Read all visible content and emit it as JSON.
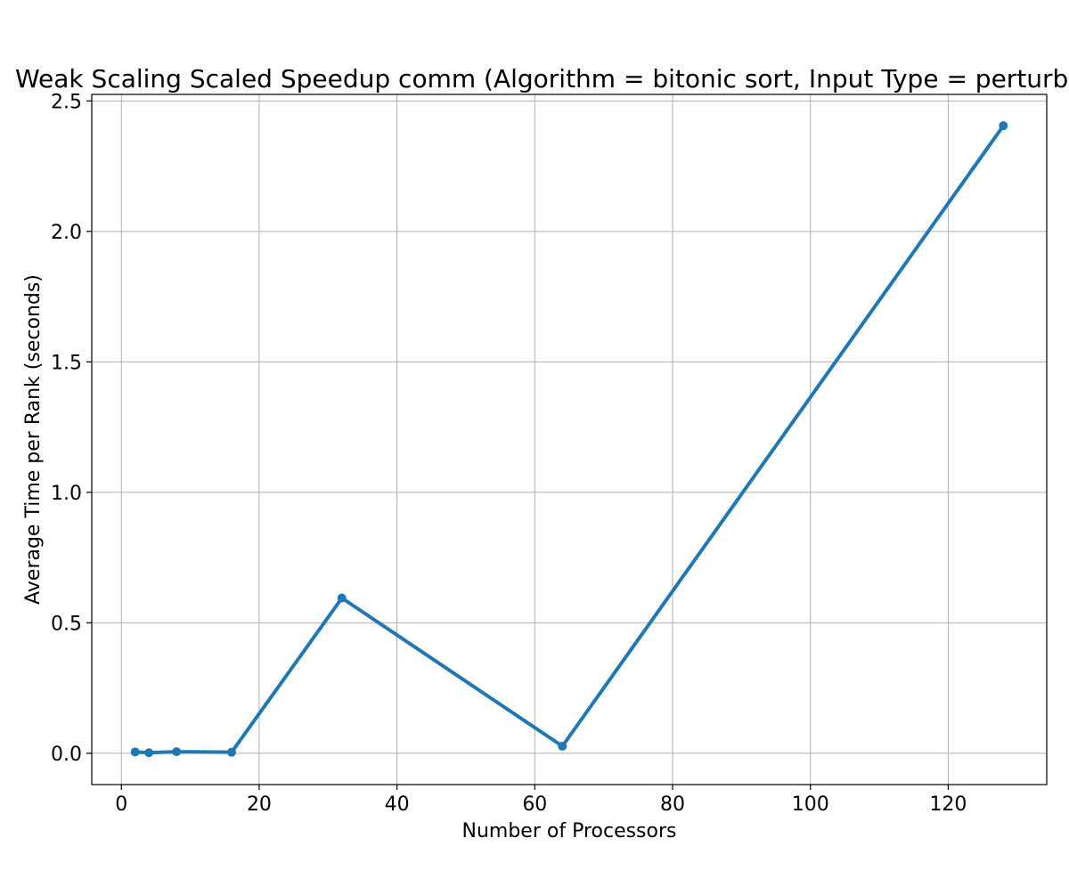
{
  "chart_data": {
    "type": "line",
    "title": "Weak Scaling Scaled Speedup comm (Algorithm = bitonic sort, Input Type = perturbed)",
    "xlabel": "Number of Processors",
    "ylabel": "Average Time per Rank (seconds)",
    "x": [
      2,
      4,
      8,
      16,
      32,
      64,
      128
    ],
    "series": [
      {
        "values": [
          0.005,
          0.002,
          0.006,
          0.004,
          0.595,
          0.027,
          2.405
        ]
      }
    ],
    "xlim": [
      -4.3,
      134.3
    ],
    "ylim": [
      -0.12,
      2.525
    ],
    "xticks": [
      0,
      20,
      40,
      60,
      80,
      100,
      120
    ],
    "xtick_labels": [
      "0",
      "20",
      "40",
      "60",
      "80",
      "100",
      "120"
    ],
    "yticks": [
      0.0,
      0.5,
      1.0,
      1.5,
      2.0,
      2.5
    ],
    "ytick_labels": [
      "0.0",
      "0.5",
      "1.0",
      "1.5",
      "2.0",
      "2.5"
    ],
    "grid": true,
    "line_color": "#1f77b4",
    "grid_color": "#b0b0b0"
  }
}
